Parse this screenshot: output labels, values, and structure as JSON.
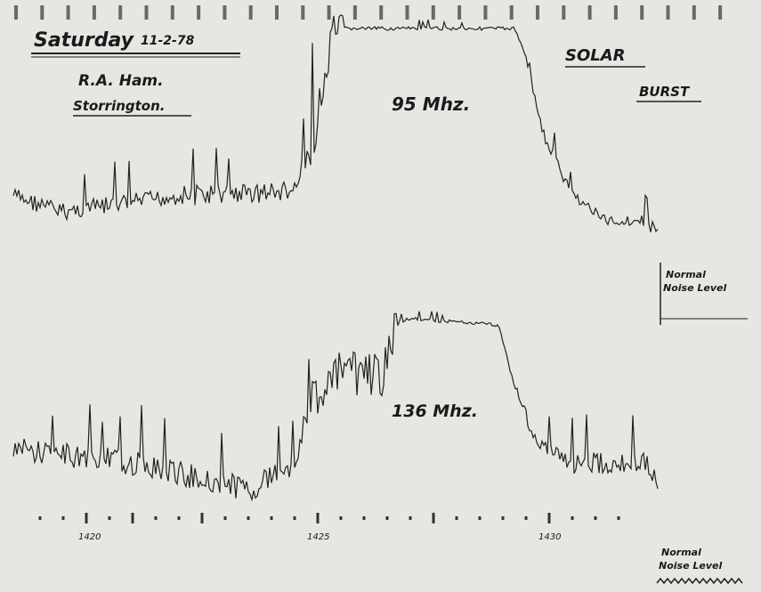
{
  "header": {
    "date": "Saturday",
    "date_numbers": "11-2-78",
    "station": "R.A. Ham.",
    "location": "Storrington."
  },
  "annotations": {
    "trace_95": "95 Mhz.",
    "solar": "SOLAR",
    "burst": "BURST",
    "trace_136": "136 Mhz.",
    "normal_upper_1": "Normal",
    "normal_upper_2": "Noise Level",
    "normal_lower_1": "Normal",
    "normal_lower_2": "Noise Level"
  },
  "time_labels": [
    "1420",
    "1425",
    "1430"
  ]
}
